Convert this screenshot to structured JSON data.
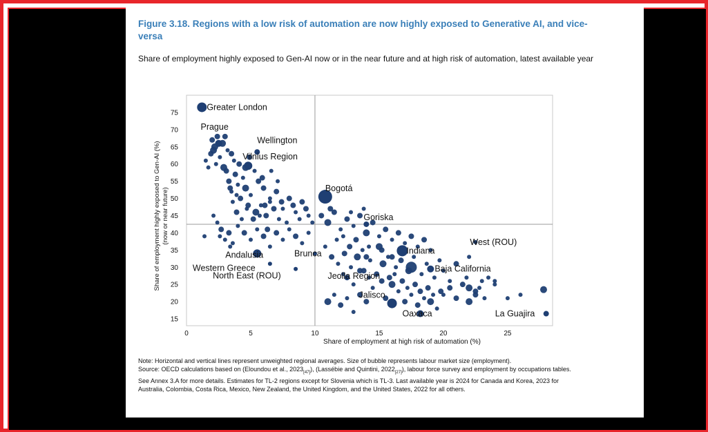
{
  "figure": {
    "title": "Figure 3.18. Regions with a low risk of automation are now highly exposed to Generative AI, and vice-versa",
    "subtitle": "Share of employment highly exposed to Gen-AI now or in the near future and at high risk of automation, latest available year"
  },
  "note": {
    "line1": "Note: Horizontal and vertical lines represent unweighted regional averages. Size of bubble represents labour market size (employment).",
    "source_prefix": "Source: OECD calculations based on (Eloundou et al., 2023",
    "ref1": "[47]",
    "source_mid": "), (Lassébie and Quintini, 2022",
    "ref2": "[27]",
    "source_rest": "), labour force survey and employment by occupations tables. See Annex 3.A for more details. Estimates for TL-2 regions except for Slovenia which is TL-3. Last available year is 2024 for Canada and Korea, 2023 for Australia, Colombia, Costa Rica, Mexico, New Zealand, the United Kingdom, and the United States, 2022 for all others."
  },
  "colors": {
    "frame": "#e8262b",
    "title": "#3a7fb8",
    "bubble": "#1f3f73",
    "axis": "#999999"
  },
  "chart_data": {
    "type": "scatter",
    "xlabel": "Share of employment at high risk of automation  (%)",
    "ylabel": "Share of employment highly exposed to Gen-AI (%)",
    "ylabel2": "(now or near future)",
    "xlim": [
      0,
      28.5
    ],
    "ylim": [
      13,
      80
    ],
    "xticks": [
      0,
      5,
      10,
      15,
      20,
      25
    ],
    "yticks": [
      15,
      20,
      25,
      30,
      35,
      40,
      45,
      50,
      55,
      60,
      65,
      70,
      75
    ],
    "x_average": 10,
    "y_average": 42.5,
    "grid": false,
    "labeled_points": [
      {
        "label": "Greater London",
        "x": 1.2,
        "y": 76.5,
        "size": 7
      },
      {
        "label": "Prague",
        "x": 2.5,
        "y": 66.0,
        "size": 5
      },
      {
        "label": "Wellington",
        "x": 5.5,
        "y": 63.5,
        "size": 4
      },
      {
        "label": "Vilnius Region",
        "x": 4.8,
        "y": 59.5,
        "size": 6
      },
      {
        "label": "Bogotá",
        "x": 10.8,
        "y": 50.5,
        "size": 10
      },
      {
        "label": "Goriska",
        "x": 14.0,
        "y": 42.5,
        "size": 4
      },
      {
        "label": "Andalusia",
        "x": 5.5,
        "y": 34.0,
        "size": 6
      },
      {
        "label": "Western Greece",
        "x": 6.5,
        "y": 31.0,
        "size": 3
      },
      {
        "label": "North East (ROU)",
        "x": 8.5,
        "y": 29.5,
        "size": 3
      },
      {
        "label": "Brunca",
        "x": 10.0,
        "y": 34.0,
        "size": 3
      },
      {
        "label": "Indiana",
        "x": 16.8,
        "y": 34.8,
        "size": 8
      },
      {
        "label": "West (ROU)",
        "x": 22.5,
        "y": 37.3,
        "size": 3
      },
      {
        "label": "Baja California",
        "x": 19.0,
        "y": 29.5,
        "size": 5
      },
      {
        "label": "Jeolla Region",
        "x": 12.5,
        "y": 27.0,
        "size": 4
      },
      {
        "label": "Jalisco",
        "x": 16.0,
        "y": 19.5,
        "size": 7
      },
      {
        "label": "Oaxaca",
        "x": 18.2,
        "y": 16.5,
        "size": 5
      },
      {
        "label": "La Guajira",
        "x": 28.0,
        "y": 16.5,
        "size": 4
      }
    ],
    "points": [
      [
        1.5,
        61,
        3
      ],
      [
        1.7,
        59,
        3
      ],
      [
        1.9,
        63,
        4
      ],
      [
        2.0,
        67,
        4
      ],
      [
        2.2,
        65,
        5
      ],
      [
        2.4,
        68,
        4
      ],
      [
        2.6,
        62,
        3
      ],
      [
        2.8,
        66,
        5
      ],
      [
        3.0,
        68,
        4
      ],
      [
        3.2,
        64,
        3
      ],
      [
        2.1,
        64,
        5
      ],
      [
        2.3,
        60,
        3
      ],
      [
        3.5,
        63,
        4
      ],
      [
        2.9,
        59,
        5
      ],
      [
        3.1,
        58,
        4
      ],
      [
        1.4,
        39,
        3
      ],
      [
        3.3,
        55,
        4
      ],
      [
        3.5,
        52,
        3
      ],
      [
        3.8,
        57,
        4
      ],
      [
        4.0,
        54,
        3
      ],
      [
        4.2,
        50,
        4
      ],
      [
        4.4,
        56,
        3
      ],
      [
        4.6,
        53,
        5
      ],
      [
        4.8,
        48,
        4
      ],
      [
        5.0,
        51,
        3
      ],
      [
        3.6,
        49,
        3
      ],
      [
        3.9,
        46,
        4
      ],
      [
        4.3,
        44,
        3
      ],
      [
        4.1,
        60,
        4
      ],
      [
        3.7,
        61,
        3
      ],
      [
        4.9,
        62,
        4
      ],
      [
        5.3,
        58,
        3
      ],
      [
        5.6,
        55,
        4
      ],
      [
        3.4,
        53,
        4
      ],
      [
        3.9,
        51,
        3
      ],
      [
        4.6,
        59,
        5
      ],
      [
        5.8,
        48,
        3
      ],
      [
        6.2,
        45,
        4
      ],
      [
        6.5,
        49,
        3
      ],
      [
        2.1,
        45,
        3
      ],
      [
        2.4,
        43,
        3
      ],
      [
        2.7,
        41,
        4
      ],
      [
        3.0,
        38,
        3
      ],
      [
        3.3,
        40,
        4
      ],
      [
        3.6,
        37,
        3
      ],
      [
        4.0,
        42,
        3
      ],
      [
        4.5,
        40,
        4
      ],
      [
        5.0,
        38,
        3
      ],
      [
        5.5,
        41,
        3
      ],
      [
        6.0,
        39,
        4
      ],
      [
        6.5,
        36,
        3
      ],
      [
        7.0,
        40,
        4
      ],
      [
        7.5,
        38,
        3
      ],
      [
        8.0,
        41,
        3
      ],
      [
        8.5,
        39,
        4
      ],
      [
        9.0,
        37,
        3
      ],
      [
        9.5,
        40,
        3
      ],
      [
        2.6,
        39,
        3
      ],
      [
        3.4,
        36,
        3
      ],
      [
        6.0,
        53,
        4
      ],
      [
        6.5,
        50,
        3
      ],
      [
        7.0,
        52,
        4
      ],
      [
        7.5,
        47,
        3
      ],
      [
        8.0,
        50,
        4
      ],
      [
        8.5,
        46,
        3
      ],
      [
        9.0,
        49,
        4
      ],
      [
        9.5,
        45,
        3
      ],
      [
        7.2,
        44,
        3
      ],
      [
        6.8,
        47,
        4
      ],
      [
        7.8,
        43,
        3
      ],
      [
        8.3,
        48,
        4
      ],
      [
        8.8,
        44,
        3
      ],
      [
        9.3,
        47,
        4
      ],
      [
        9.8,
        43,
        3
      ],
      [
        6.3,
        41,
        4
      ],
      [
        5.7,
        45,
        3
      ],
      [
        5.2,
        44,
        4
      ],
      [
        4.7,
        47,
        3
      ],
      [
        7.1,
        55,
        3
      ],
      [
        5.9,
        56,
        4
      ],
      [
        6.6,
        58,
        3
      ],
      [
        5.4,
        46,
        5
      ],
      [
        6.1,
        48,
        4
      ],
      [
        7.4,
        49,
        4
      ],
      [
        10.5,
        45,
        4
      ],
      [
        11.0,
        43,
        5
      ],
      [
        11.5,
        46,
        4
      ],
      [
        12.0,
        41,
        3
      ],
      [
        12.5,
        44,
        4
      ],
      [
        13.0,
        42,
        3
      ],
      [
        13.5,
        45,
        4
      ],
      [
        14.0,
        40,
        5
      ],
      [
        14.5,
        43,
        4
      ],
      [
        15.0,
        39,
        3
      ],
      [
        15.5,
        41,
        4
      ],
      [
        16.0,
        38,
        3
      ],
      [
        16.5,
        40,
        4
      ],
      [
        17.0,
        37,
        3
      ],
      [
        17.5,
        39,
        4
      ],
      [
        18.0,
        36,
        3
      ],
      [
        18.5,
        38,
        4
      ],
      [
        19.0,
        35,
        3
      ],
      [
        11.2,
        47,
        4
      ],
      [
        12.2,
        39,
        3
      ],
      [
        13.2,
        38,
        4
      ],
      [
        14.2,
        36,
        3
      ],
      [
        15.2,
        35,
        4
      ],
      [
        12.8,
        46,
        3
      ],
      [
        13.8,
        47,
        3
      ],
      [
        10.8,
        36,
        3
      ],
      [
        11.3,
        33,
        4
      ],
      [
        11.8,
        31,
        3
      ],
      [
        12.3,
        34,
        4
      ],
      [
        12.8,
        30,
        3
      ],
      [
        13.3,
        33,
        5
      ],
      [
        13.8,
        29,
        4
      ],
      [
        14.3,
        32,
        3
      ],
      [
        14.8,
        28,
        4
      ],
      [
        15.3,
        31,
        5
      ],
      [
        15.8,
        27,
        4
      ],
      [
        16.3,
        30,
        3
      ],
      [
        16.8,
        26,
        4
      ],
      [
        17.3,
        29,
        5
      ],
      [
        17.8,
        25,
        4
      ],
      [
        18.3,
        28,
        3
      ],
      [
        18.8,
        24,
        4
      ],
      [
        19.3,
        27,
        3
      ],
      [
        19.8,
        23,
        4
      ],
      [
        17.5,
        30,
        8
      ],
      [
        16.0,
        33,
        4
      ],
      [
        15.0,
        36,
        5
      ],
      [
        14.0,
        33,
        4
      ],
      [
        13.0,
        25,
        3
      ],
      [
        13.5,
        22,
        4
      ],
      [
        14.5,
        24,
        3
      ],
      [
        15.5,
        21,
        4
      ],
      [
        16.5,
        23,
        3
      ],
      [
        17.0,
        20,
        4
      ],
      [
        17.5,
        22,
        3
      ],
      [
        18.0,
        19,
        4
      ],
      [
        18.5,
        21,
        3
      ],
      [
        19.0,
        20,
        5
      ],
      [
        20.0,
        22,
        3
      ],
      [
        19.5,
        18,
        3
      ],
      [
        16.0,
        25,
        5
      ],
      [
        14.0,
        20,
        4
      ],
      [
        13.0,
        17,
        3
      ],
      [
        12.0,
        19,
        4
      ],
      [
        11.0,
        20,
        5
      ],
      [
        11.5,
        22,
        3
      ],
      [
        12.5,
        21,
        3
      ],
      [
        20.5,
        26,
        3
      ],
      [
        21.5,
        25,
        4
      ],
      [
        22.0,
        24,
        5
      ],
      [
        22.5,
        23,
        4
      ],
      [
        23.0,
        26,
        3
      ],
      [
        21.0,
        21,
        4
      ],
      [
        22.0,
        20,
        5
      ],
      [
        22.5,
        22,
        4
      ],
      [
        23.5,
        27,
        3
      ],
      [
        20.0,
        29,
        3
      ],
      [
        21.0,
        31,
        4
      ],
      [
        22.0,
        33,
        3
      ],
      [
        25.0,
        21,
        3
      ],
      [
        26.0,
        22,
        3
      ],
      [
        24.0,
        26,
        3
      ],
      [
        22.8,
        24,
        3
      ],
      [
        23.2,
        21,
        3
      ],
      [
        11.7,
        38,
        3
      ],
      [
        12.7,
        36,
        4
      ],
      [
        13.7,
        35,
        3
      ],
      [
        15.7,
        33,
        3
      ],
      [
        16.7,
        32,
        4
      ],
      [
        17.7,
        33,
        3
      ],
      [
        18.7,
        31,
        3
      ],
      [
        19.7,
        32,
        3
      ],
      [
        18.2,
        23,
        4
      ],
      [
        17.2,
        24,
        3
      ],
      [
        16.2,
        28,
        3
      ],
      [
        15.2,
        26,
        4
      ],
      [
        14.2,
        27,
        3
      ],
      [
        19.2,
        22,
        3
      ],
      [
        20.5,
        24,
        4
      ],
      [
        21.8,
        27,
        3
      ],
      [
        12.2,
        28,
        3
      ],
      [
        13.5,
        29,
        4
      ],
      [
        27.8,
        23.5,
        5
      ],
      [
        24.0,
        25,
        3
      ]
    ]
  }
}
